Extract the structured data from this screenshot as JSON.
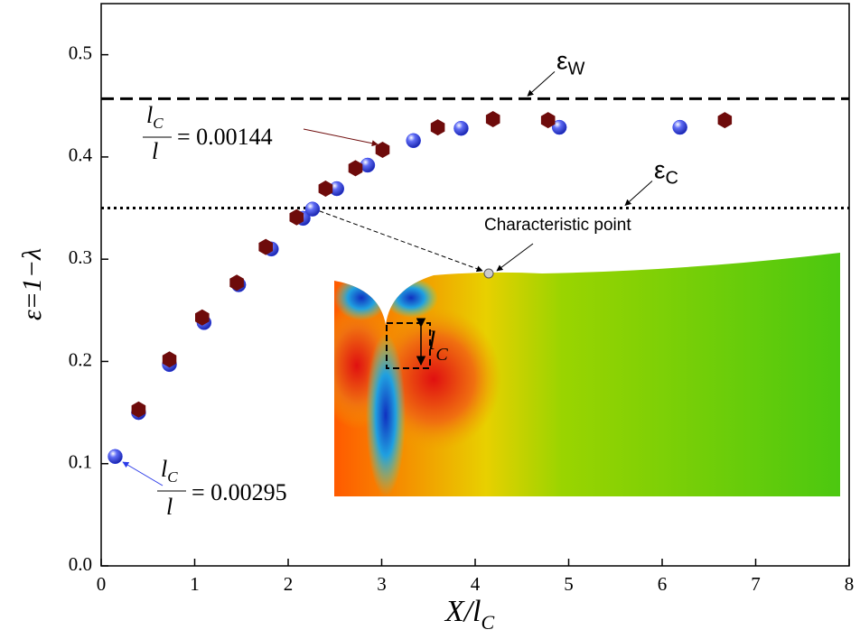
{
  "chart_data": {
    "type": "scatter",
    "xlabel": {
      "main": "X/l",
      "sub": "C"
    },
    "ylabel": "ε=1−λ",
    "xlim": [
      0,
      8
    ],
    "ylim": [
      0,
      0.55
    ],
    "xticks": [
      0,
      1,
      2,
      3,
      4,
      5,
      6,
      7,
      8
    ],
    "yticks": [
      {
        "value": 0,
        "label": "0.0"
      },
      0.1,
      0.2,
      0.3,
      0.4,
      0.5
    ],
    "series": [
      {
        "marker": "sphere",
        "color": "#2b3be8",
        "x": [
          0.15,
          0.4,
          0.73,
          1.1,
          1.47,
          1.82,
          2.16,
          2.26,
          2.52,
          2.85,
          3.34,
          3.85,
          4.9,
          6.19
        ],
        "values": [
          0.107,
          0.15,
          0.197,
          0.238,
          0.275,
          0.31,
          0.34,
          0.349,
          0.369,
          0.392,
          0.416,
          0.428,
          0.429,
          0.429
        ]
      },
      {
        "marker": "hexagon",
        "color": "#6e0b0b",
        "x": [
          0.4,
          0.73,
          1.08,
          1.45,
          1.76,
          2.09,
          2.4,
          2.72,
          3.01,
          3.6,
          4.19,
          4.78,
          6.67
        ],
        "values": [
          0.153,
          0.202,
          0.243,
          0.277,
          0.312,
          0.341,
          0.369,
          0.389,
          0.407,
          0.429,
          0.437,
          0.436,
          0.436
        ]
      }
    ],
    "hlines": [
      {
        "value": 0.457,
        "style": "dashed",
        "label": "ε",
        "sub": "W"
      },
      {
        "value": 0.35,
        "style": "dotted",
        "label": "ε",
        "sub": "C"
      }
    ],
    "annotations": [
      {
        "numerator": "l",
        "sub": "C",
        "denominator": "l",
        "text": "= 0.00144"
      },
      {
        "numerator": "l",
        "sub": "C",
        "denominator": "l",
        "text": "= 0.00295"
      },
      {
        "text": "Characteristic point"
      },
      {
        "text": "l",
        "sub": "C"
      }
    ]
  }
}
